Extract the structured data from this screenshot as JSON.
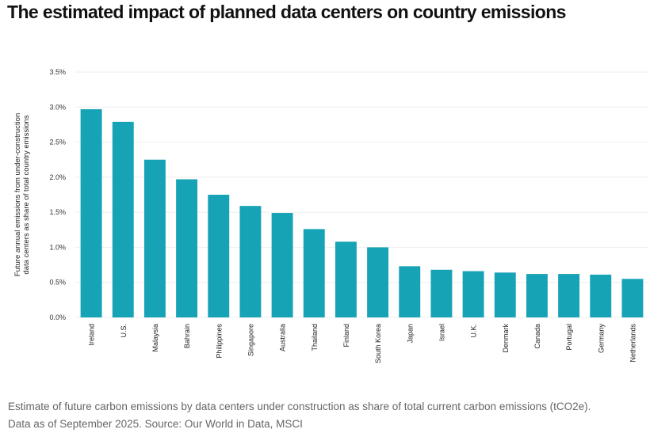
{
  "header": {
    "title": "The estimated impact of planned data centers on country emissions"
  },
  "chart_data": {
    "type": "bar",
    "title": "The estimated impact of planned data centers on country emissions",
    "xlabel": "",
    "ylabel_lines": [
      "Future annual emissions from under-construction",
      "data centers as share of total country emissions"
    ],
    "categories": [
      "Ireland",
      "U.S.",
      "Malaysia",
      "Bahrain",
      "Philippines",
      "Singapore",
      "Australia",
      "Thailand",
      "Finland",
      "South Korea",
      "Japan",
      "Israel",
      "U.K.",
      "Denmark",
      "Canada",
      "Portugal",
      "Germany",
      "Netherlands"
    ],
    "values": [
      2.97,
      2.79,
      2.25,
      1.97,
      1.75,
      1.59,
      1.49,
      1.26,
      1.08,
      1.0,
      0.73,
      0.68,
      0.66,
      0.64,
      0.62,
      0.62,
      0.61,
      0.55
    ],
    "value_unit": "%",
    "ylim": [
      0,
      3.5
    ],
    "yticks": [
      0.0,
      0.5,
      1.0,
      1.5,
      2.0,
      2.5,
      3.0,
      3.5
    ],
    "ytick_labels": [
      "0.0%",
      "0.5%",
      "1.0%",
      "1.5%",
      "2.0%",
      "2.5%",
      "3.0%",
      "3.5%"
    ],
    "grid": true,
    "legend": "none",
    "bar_color": "#17a3b6",
    "grid_color": "#eeeeee"
  },
  "caption": {
    "line1": "Estimate of future carbon emissions by data centers under construction as share of total current carbon emissions (tCO2e).",
    "line2": "Data as of September 2025. Source: Our World in Data, MSCI"
  }
}
